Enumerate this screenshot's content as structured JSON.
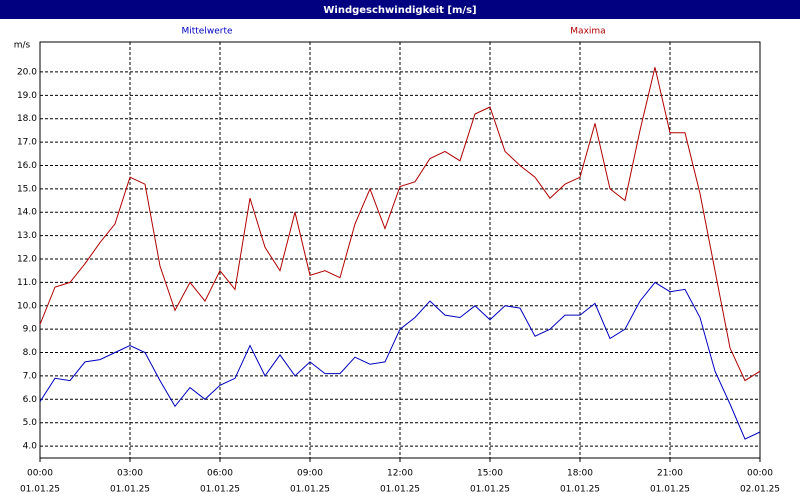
{
  "chart_data": {
    "type": "line",
    "title": "Windgeschwindigkeit [m/s]",
    "y_label": "m/s",
    "x": [
      0,
      0.5,
      1,
      1.5,
      2,
      2.5,
      3,
      3.5,
      4,
      4.5,
      5,
      5.5,
      6,
      6.5,
      7,
      7.5,
      8,
      8.5,
      9,
      9.5,
      10,
      10.5,
      11,
      11.5,
      12,
      12.5,
      13,
      13.5,
      14,
      14.5,
      15,
      15.5,
      16,
      16.5,
      17,
      17.5,
      18,
      18.5,
      19,
      19.5,
      20,
      20.5,
      21,
      21.5,
      22,
      22.5,
      23,
      23.5,
      24
    ],
    "series": [
      {
        "name": "Mittelwerte",
        "color": "#0000c0",
        "values": [
          5.9,
          6.9,
          6.8,
          7.6,
          7.7,
          8.0,
          8.3,
          8.0,
          6.8,
          5.7,
          6.5,
          6.0,
          6.6,
          6.9,
          8.3,
          7.0,
          7.9,
          7.0,
          7.6,
          7.1,
          7.1,
          7.8,
          7.5,
          7.6,
          9.0,
          9.5,
          10.2,
          9.6,
          9.5,
          10.0,
          9.4,
          10.0,
          9.9,
          8.7,
          9.0,
          9.6,
          9.6,
          10.1,
          8.6,
          9.0,
          10.2,
          11.0,
          10.6,
          10.7,
          9.5,
          7.2,
          5.8,
          4.3,
          4.6
        ]
      },
      {
        "name": "Maxima",
        "color": "#b00000",
        "values": [
          9.2,
          10.8,
          11.0,
          11.8,
          12.7,
          13.5,
          15.5,
          15.2,
          11.7,
          9.8,
          11.0,
          10.2,
          11.5,
          10.7,
          14.6,
          12.5,
          11.5,
          14.0,
          11.3,
          11.5,
          11.2,
          13.5,
          15.0,
          13.3,
          15.1,
          15.3,
          16.3,
          16.6,
          16.2,
          18.2,
          18.5,
          16.6,
          16.0,
          15.5,
          14.6,
          15.2,
          15.5,
          17.8,
          15.0,
          14.5,
          17.5,
          20.2,
          17.4,
          17.4,
          14.8,
          11.5,
          8.2,
          6.8,
          7.2
        ]
      }
    ],
    "xlim": [
      0,
      24
    ],
    "xticks": [
      {
        "value": 0,
        "label": "00:00"
      },
      {
        "value": 3,
        "label": "03:00"
      },
      {
        "value": 6,
        "label": "06:00"
      },
      {
        "value": 9,
        "label": "09:00"
      },
      {
        "value": 12,
        "label": "12:00"
      },
      {
        "value": 15,
        "label": "15:00"
      },
      {
        "value": 18,
        "label": "18:00"
      },
      {
        "value": 21,
        "label": "21:00"
      },
      {
        "value": 24,
        "label": "00:00"
      }
    ],
    "xtick_dates": [
      "01.01.25",
      "01.01.25",
      "01.01.25",
      "01.01.25",
      "01.01.25",
      "01.01.25",
      "01.01.25",
      "01.01.25",
      "02.01.25"
    ],
    "ylim": [
      3.49,
      21.28
    ],
    "yticks": [
      {
        "value": 4,
        "label": "4.0"
      },
      {
        "value": 5,
        "label": "5.0"
      },
      {
        "value": 6,
        "label": "6.0"
      },
      {
        "value": 7,
        "label": "7.0"
      },
      {
        "value": 8,
        "label": "8.0"
      },
      {
        "value": 9,
        "label": "9.0"
      },
      {
        "value": 10,
        "label": "10.0"
      },
      {
        "value": 11,
        "label": "11.0"
      },
      {
        "value": 12,
        "label": "12.0"
      },
      {
        "value": 13,
        "label": "13.0"
      },
      {
        "value": 14,
        "label": "14.0"
      },
      {
        "value": 15,
        "label": "15.0"
      },
      {
        "value": 16,
        "label": "16.0"
      },
      {
        "value": 17,
        "label": "17.0"
      },
      {
        "value": 18,
        "label": "18.0"
      },
      {
        "value": 19,
        "label": "19.0"
      },
      {
        "value": 20,
        "label": "20.0"
      }
    ],
    "grid": true
  }
}
